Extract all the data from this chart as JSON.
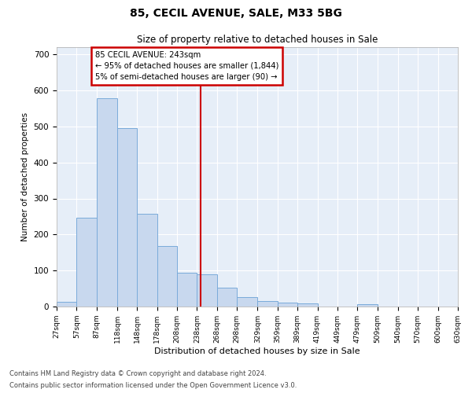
{
  "title1": "85, CECIL AVENUE, SALE, M33 5BG",
  "title2": "Size of property relative to detached houses in Sale",
  "xlabel": "Distribution of detached houses by size in Sale",
  "ylabel": "Number of detached properties",
  "footnote1": "Contains HM Land Registry data © Crown copyright and database right 2024.",
  "footnote2": "Contains public sector information licensed under the Open Government Licence v3.0.",
  "annotation_line1": "85 CECIL AVENUE: 243sqm",
  "annotation_line2": "← 95% of detached houses are smaller (1,844)",
  "annotation_line3": "5% of semi-detached houses are larger (90) →",
  "bar_color": "#c8d8ee",
  "bar_edge_color": "#7aabda",
  "line_color": "#cc0000",
  "annotation_box_edgecolor": "#cc0000",
  "bg_color": "#dde8f5",
  "plot_bg_color": "#e6eef8",
  "property_line_x": 243,
  "bin_edges": [
    27,
    57,
    87,
    118,
    148,
    178,
    208,
    238,
    268,
    298,
    329,
    359,
    389,
    419,
    449,
    479,
    509,
    540,
    570,
    600,
    630
  ],
  "bar_heights": [
    13,
    246,
    578,
    495,
    258,
    168,
    93,
    90,
    52,
    26,
    15,
    12,
    8,
    0,
    0,
    6,
    0,
    0,
    0,
    0
  ],
  "ylim": [
    0,
    720
  ],
  "yticks": [
    0,
    100,
    200,
    300,
    400,
    500,
    600,
    700
  ]
}
